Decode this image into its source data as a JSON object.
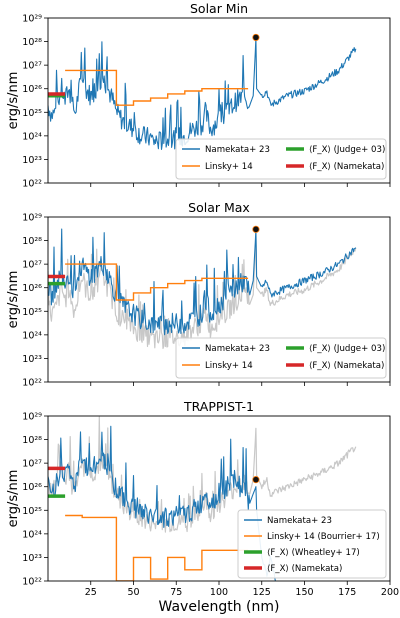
{
  "figure": {
    "xlabel": "Wavelength (nm)",
    "colors": {
      "namekata": "#1f77b4",
      "linsky": "#ff7f0e",
      "judge": "#2ca02c",
      "namekata_fx": "#d62728",
      "reference": "#c8c8c8",
      "marker": "#111111"
    }
  },
  "chart_data": [
    {
      "type": "line",
      "title": "Solar Min",
      "xlabel": "",
      "ylabel": "erg/s/nm",
      "xlim": [
        0,
        200
      ],
      "ylim": [
        1e+22,
        1e+29
      ],
      "yscale": "log",
      "xticks": [],
      "yticks": [
        "10²²",
        "10²³",
        "10²⁴",
        "10²⁵",
        "10²⁶",
        "10²⁷",
        "10²⁸",
        "10²⁹"
      ],
      "legend_position": "lower-right",
      "legend": [
        "Namekata+ 23",
        "Linsky+ 14",
        "⟨F_X⟩ (Judge+ 03)",
        "⟨F_X⟩ (Namekata)"
      ],
      "series": [
        {
          "name": "Namekata+ 23",
          "style": "spiky",
          "x": [
            0,
            2,
            4,
            6,
            8,
            10,
            12,
            14,
            16,
            18,
            20,
            22,
            25,
            28,
            30,
            32,
            35,
            38,
            40,
            43,
            46,
            50,
            55,
            60,
            62,
            65,
            70,
            75,
            80,
            85,
            90,
            92,
            95,
            100,
            105,
            110,
            115,
            118,
            120,
            121.6,
            122,
            125,
            128,
            130,
            140,
            150,
            160,
            170,
            180
          ],
          "y": [
            2e+25,
            8e+24,
            1e+25,
            3e+25,
            1e+26,
            3e+25,
            1e+26,
            2e+25,
            1e+25,
            8e+25,
            3e+26,
            1e+26,
            5e+25,
            1e+26,
            2e+26,
            3e+26,
            1e+26,
            3e+25,
            1e+25,
            5e+24,
            3e+24,
            2e+24,
            1e+24,
            8e+23,
            6e+23,
            6e+23,
            7e+23,
            8e+23,
            1e+24,
            2e+24,
            3e+24,
            1e+25,
            2e+24,
            5e+24,
            1e+25,
            3e+25,
            5e+25,
            2e+25,
            5e+25,
            1.5e+28,
            1e+26,
            5e+25,
            8e+25,
            2e+25,
            5e+25,
            8e+25,
            2e+26,
            6e+26,
            5e+27
          ],
          "color": "#1f77b4"
        },
        {
          "name": "Linsky+ 14",
          "style": "step",
          "x": [
            10,
            20,
            30,
            40,
            50,
            60,
            70,
            80,
            90,
            100,
            110,
            117
          ],
          "y": [
            6e+26,
            6e+26,
            6e+26,
            2e+25,
            3e+25,
            4e+25,
            6e+25,
            8e+25,
            1e+26,
            1e+26,
            1e+26,
            1e+26
          ],
          "color": "#ff7f0e"
        },
        {
          "name": "⟨F_X⟩ (Judge+ 03)",
          "style": "bar",
          "x": [
            0,
            10
          ],
          "y": [
            5e+25,
            5e+25
          ],
          "color": "#2ca02c"
        },
        {
          "name": "⟨F_X⟩ (Namekata)",
          "style": "bar",
          "x": [
            0,
            10
          ],
          "y": [
            6e+25,
            6e+25
          ],
          "color": "#d62728"
        },
        {
          "name": "Lyman-alpha",
          "style": "marker",
          "x": [
            121.6
          ],
          "y": [
            1.5e+28
          ],
          "color": "#111111"
        }
      ]
    },
    {
      "type": "line",
      "title": "Solar Max",
      "xlabel": "",
      "ylabel": "erg/s/nm",
      "xlim": [
        0,
        200
      ],
      "ylim": [
        1e+22,
        1e+29
      ],
      "yscale": "log",
      "xticks": [],
      "yticks": [
        "10²²",
        "10²³",
        "10²⁴",
        "10²⁵",
        "10²⁶",
        "10²⁷",
        "10²⁸",
        "10²⁹"
      ],
      "legend_position": "lower-right",
      "legend": [
        "Namekata+ 23",
        "Linsky+ 14",
        "⟨F_X⟩ (Judge+ 03)",
        "⟨F_X⟩ (Namekata)"
      ],
      "series": [
        {
          "name": "Solar Min (reference)",
          "style": "spiky",
          "x": [
            0,
            2,
            4,
            6,
            8,
            10,
            12,
            14,
            16,
            18,
            20,
            22,
            25,
            28,
            30,
            32,
            35,
            38,
            40,
            43,
            46,
            50,
            55,
            60,
            62,
            65,
            70,
            75,
            80,
            85,
            90,
            92,
            95,
            100,
            105,
            110,
            115,
            118,
            120,
            121.6,
            122,
            125,
            128,
            130,
            140,
            150,
            160,
            170,
            180
          ],
          "y": [
            2e+25,
            8e+24,
            1e+25,
            3e+25,
            1e+26,
            3e+25,
            1e+26,
            2e+25,
            1e+25,
            8e+25,
            3e+26,
            1e+26,
            5e+25,
            1e+26,
            2e+26,
            3e+26,
            1e+26,
            3e+25,
            1e+25,
            5e+24,
            3e+24,
            2e+24,
            1e+24,
            8e+23,
            6e+23,
            6e+23,
            7e+23,
            8e+23,
            1e+24,
            2e+24,
            3e+24,
            1e+25,
            2e+24,
            5e+24,
            1e+25,
            3e+25,
            5e+25,
            2e+25,
            5e+25,
            1.5e+28,
            1e+26,
            5e+25,
            8e+25,
            2e+25,
            5e+25,
            8e+25,
            2e+26,
            6e+26,
            5e+27
          ],
          "color": "#c8c8c8"
        },
        {
          "name": "Namekata+ 23",
          "style": "spiky",
          "x": [
            0,
            2,
            4,
            6,
            8,
            10,
            12,
            14,
            16,
            18,
            20,
            22,
            25,
            28,
            30,
            32,
            35,
            38,
            40,
            43,
            46,
            50,
            55,
            60,
            62,
            65,
            70,
            75,
            80,
            85,
            90,
            92,
            95,
            100,
            105,
            110,
            115,
            118,
            120,
            121.6,
            122,
            125,
            128,
            130,
            140,
            150,
            160,
            170,
            180
          ],
          "y": [
            1e+26,
            5e+25,
            8e+25,
            2e+26,
            5e+26,
            2e+26,
            4e+26,
            1e+26,
            8e+25,
            4e+26,
            1e+27,
            5e+26,
            3e+26,
            5e+26,
            8e+26,
            1e+27,
            4e+26,
            1e+26,
            5e+25,
            2e+25,
            1.2e+25,
            8e+24,
            4e+24,
            3e+24,
            2.5e+24,
            2.5e+24,
            3e+24,
            3e+24,
            3e+24,
            5e+24,
            8e+24,
            3e+25,
            8e+24,
            2e+25,
            5e+25,
            1e+26,
            2e+26,
            5e+25,
            2e+26,
            3e+28,
            3e+26,
            1e+26,
            2e+26,
            5e+25,
            1e+26,
            2e+26,
            4e+26,
            1e+27,
            5e+27
          ],
          "color": "#1f77b4"
        },
        {
          "name": "Linsky+ 14",
          "style": "step",
          "x": [
            10,
            20,
            30,
            40,
            50,
            60,
            70,
            80,
            90,
            100,
            110,
            117
          ],
          "y": [
            1e+27,
            1e+27,
            1e+27,
            3e+25,
            6e+25,
            1e+26,
            1.5e+26,
            2e+26,
            2.5e+26,
            2.5e+26,
            2.5e+26,
            2.5e+26
          ],
          "color": "#ff7f0e"
        },
        {
          "name": "⟨F_X⟩ (Judge+ 03)",
          "style": "bar",
          "x": [
            0,
            10
          ],
          "y": [
            1.5e+26,
            1.5e+26
          ],
          "color": "#2ca02c"
        },
        {
          "name": "⟨F_X⟩ (Namekata)",
          "style": "bar",
          "x": [
            0,
            10
          ],
          "y": [
            3e+26,
            3e+26
          ],
          "color": "#d62728"
        },
        {
          "name": "Lyman-alpha",
          "style": "marker",
          "x": [
            121.6
          ],
          "y": [
            3e+28
          ],
          "color": "#111111"
        }
      ]
    },
    {
      "type": "line",
      "title": "TRAPPIST-1",
      "xlabel": "Wavelength (nm)",
      "ylabel": "erg/s/nm",
      "xlim": [
        0,
        200
      ],
      "ylim": [
        1e+22,
        1e+29
      ],
      "yscale": "log",
      "xticks": [
        "25",
        "50",
        "75",
        "100",
        "125",
        "150",
        "175",
        "200"
      ],
      "yticks": [
        "10²²",
        "10²³",
        "10²⁴",
        "10²⁵",
        "10²⁶",
        "10²⁷",
        "10²⁸",
        "10²⁹"
      ],
      "legend_position": "lower-right",
      "legend": [
        "Namekata+ 23",
        "Linsky+ 14 (Bourrier+ 17)",
        "⟨F_X⟩ (Wheatley+ 17)",
        "⟨F_X⟩ (Namekata)"
      ],
      "series": [
        {
          "name": "Solar Max (reference)",
          "style": "spiky",
          "x": [
            0,
            2,
            4,
            6,
            8,
            10,
            12,
            14,
            16,
            18,
            20,
            22,
            25,
            28,
            30,
            32,
            35,
            38,
            40,
            43,
            46,
            50,
            55,
            60,
            62,
            65,
            70,
            75,
            80,
            85,
            90,
            92,
            95,
            100,
            105,
            110,
            115,
            118,
            120,
            121.6,
            122,
            125,
            128,
            130,
            140,
            150,
            160,
            170,
            180
          ],
          "y": [
            1e+26,
            5e+25,
            8e+25,
            2e+26,
            5e+26,
            2e+26,
            4e+26,
            1e+26,
            8e+25,
            4e+26,
            1e+27,
            5e+26,
            3e+26,
            5e+26,
            8e+26,
            1e+27,
            4e+26,
            1e+26,
            5e+25,
            2e+25,
            1.2e+25,
            8e+24,
            4e+24,
            3e+24,
            2.5e+24,
            2.5e+24,
            3e+24,
            3e+24,
            3e+24,
            5e+24,
            8e+24,
            3e+25,
            8e+24,
            2e+25,
            5e+25,
            1e+26,
            2e+26,
            5e+25,
            2e+26,
            3e+28,
            3e+26,
            1e+26,
            2e+26,
            5e+25,
            1e+26,
            2e+26,
            4e+26,
            1e+27,
            5e+27
          ],
          "color": "#c8c8c8"
        },
        {
          "name": "Namekata+ 23",
          "style": "spiky",
          "x": [
            0,
            2,
            4,
            6,
            8,
            10,
            12,
            14,
            16,
            18,
            20,
            22,
            25,
            28,
            30,
            32,
            35,
            38,
            40,
            43,
            46,
            50,
            55,
            60,
            62,
            65,
            70,
            75,
            80,
            85,
            90,
            92,
            95,
            100,
            105,
            110,
            115,
            118,
            120,
            121.6,
            122,
            125,
            128,
            130,
            133
          ],
          "y": [
            1e+26,
            5e+25,
            1e+26,
            3e+26,
            8e+26,
            3e+26,
            6e+26,
            2e+26,
            1e+26,
            5e+26,
            1.5e+27,
            8e+26,
            5e+26,
            8e+26,
            1.5e+27,
            2e+27,
            6e+26,
            2e+26,
            8e+25,
            4e+25,
            2e+25,
            1.5e+25,
            8e+24,
            6e+24,
            5e+24,
            5e+24,
            5e+24,
            6e+24,
            6e+24,
            1e+25,
            2e+25,
            8e+25,
            2e+25,
            5e+25,
            1e+26,
            2e+26,
            5e+25,
            2e+25,
            5e+25,
            1e+26,
            1e+25,
            1e+23,
            2e+22,
            1e+23,
            1e+22
          ],
          "color": "#1f77b4"
        },
        {
          "name": "Linsky+ 14 (Bourrier+ 17)",
          "style": "step",
          "x": [
            10,
            20,
            30,
            40,
            50,
            60,
            70,
            80,
            90,
            100,
            110,
            117
          ],
          "y": [
            6e+24,
            5e+24,
            5e+24,
            1e+22,
            1e+23,
            1.2e+22,
            1e+23,
            3e+22,
            2e+23,
            2e+23,
            2e+23,
            2e+23
          ],
          "color": "#ff7f0e"
        },
        {
          "name": "⟨F_X⟩ (Wheatley+ 17)",
          "style": "bar",
          "x": [
            0,
            10
          ],
          "y": [
            4e+25,
            4e+25
          ],
          "color": "#2ca02c"
        },
        {
          "name": "⟨F_X⟩ (Namekata)",
          "style": "bar",
          "x": [
            0,
            10
          ],
          "y": [
            6e+26,
            6e+26
          ],
          "color": "#d62728"
        },
        {
          "name": "Lyman-alpha",
          "style": "marker",
          "x": [
            121.6
          ],
          "y": [
            2e+26
          ],
          "color": "#111111"
        }
      ]
    }
  ]
}
